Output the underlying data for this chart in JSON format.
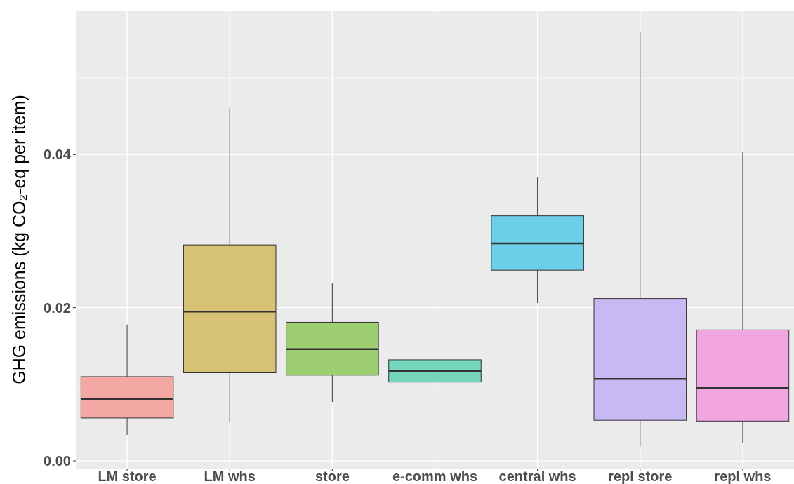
{
  "chart_data": {
    "type": "box",
    "ylabel": "GHG emissions (kg CO₂-eq per item)",
    "categories": [
      "LM store",
      "LM whs",
      "store",
      "e-comm whs",
      "central whs",
      "repl store",
      "repl whs"
    ],
    "colors": [
      "#f4a8a3",
      "#d7c172",
      "#9dcf72",
      "#73d6bd",
      "#6ccfea",
      "#c8b9f4",
      "#f2a6e0"
    ],
    "boxes": [
      {
        "low": 0.0034,
        "q1": 0.0056,
        "median": 0.0081,
        "q3": 0.011,
        "high": 0.0178
      },
      {
        "low": 0.005,
        "q1": 0.0115,
        "median": 0.0195,
        "q3": 0.0282,
        "high": 0.0461
      },
      {
        "low": 0.0077,
        "q1": 0.0112,
        "median": 0.0146,
        "q3": 0.0181,
        "high": 0.0232
      },
      {
        "low": 0.0085,
        "q1": 0.0103,
        "median": 0.0117,
        "q3": 0.0132,
        "high": 0.0153
      },
      {
        "low": 0.0206,
        "q1": 0.0249,
        "median": 0.0284,
        "q3": 0.032,
        "high": 0.037
      },
      {
        "low": 0.0019,
        "q1": 0.0053,
        "median": 0.0107,
        "q3": 0.0212,
        "high": 0.056
      },
      {
        "low": 0.0023,
        "q1": 0.0052,
        "median": 0.0095,
        "q3": 0.0171,
        "high": 0.0403
      }
    ],
    "ylim": [
      -0.001,
      0.0588
    ],
    "yticks": [
      {
        "value": 0,
        "label": "0.00"
      },
      {
        "value": 0.01,
        "label": null
      },
      {
        "value": 0.02,
        "label": "0.02"
      },
      {
        "value": 0.03,
        "label": null
      },
      {
        "value": 0.04,
        "label": "0.04"
      },
      {
        "value": 0.05,
        "label": null
      }
    ],
    "grid": true
  }
}
